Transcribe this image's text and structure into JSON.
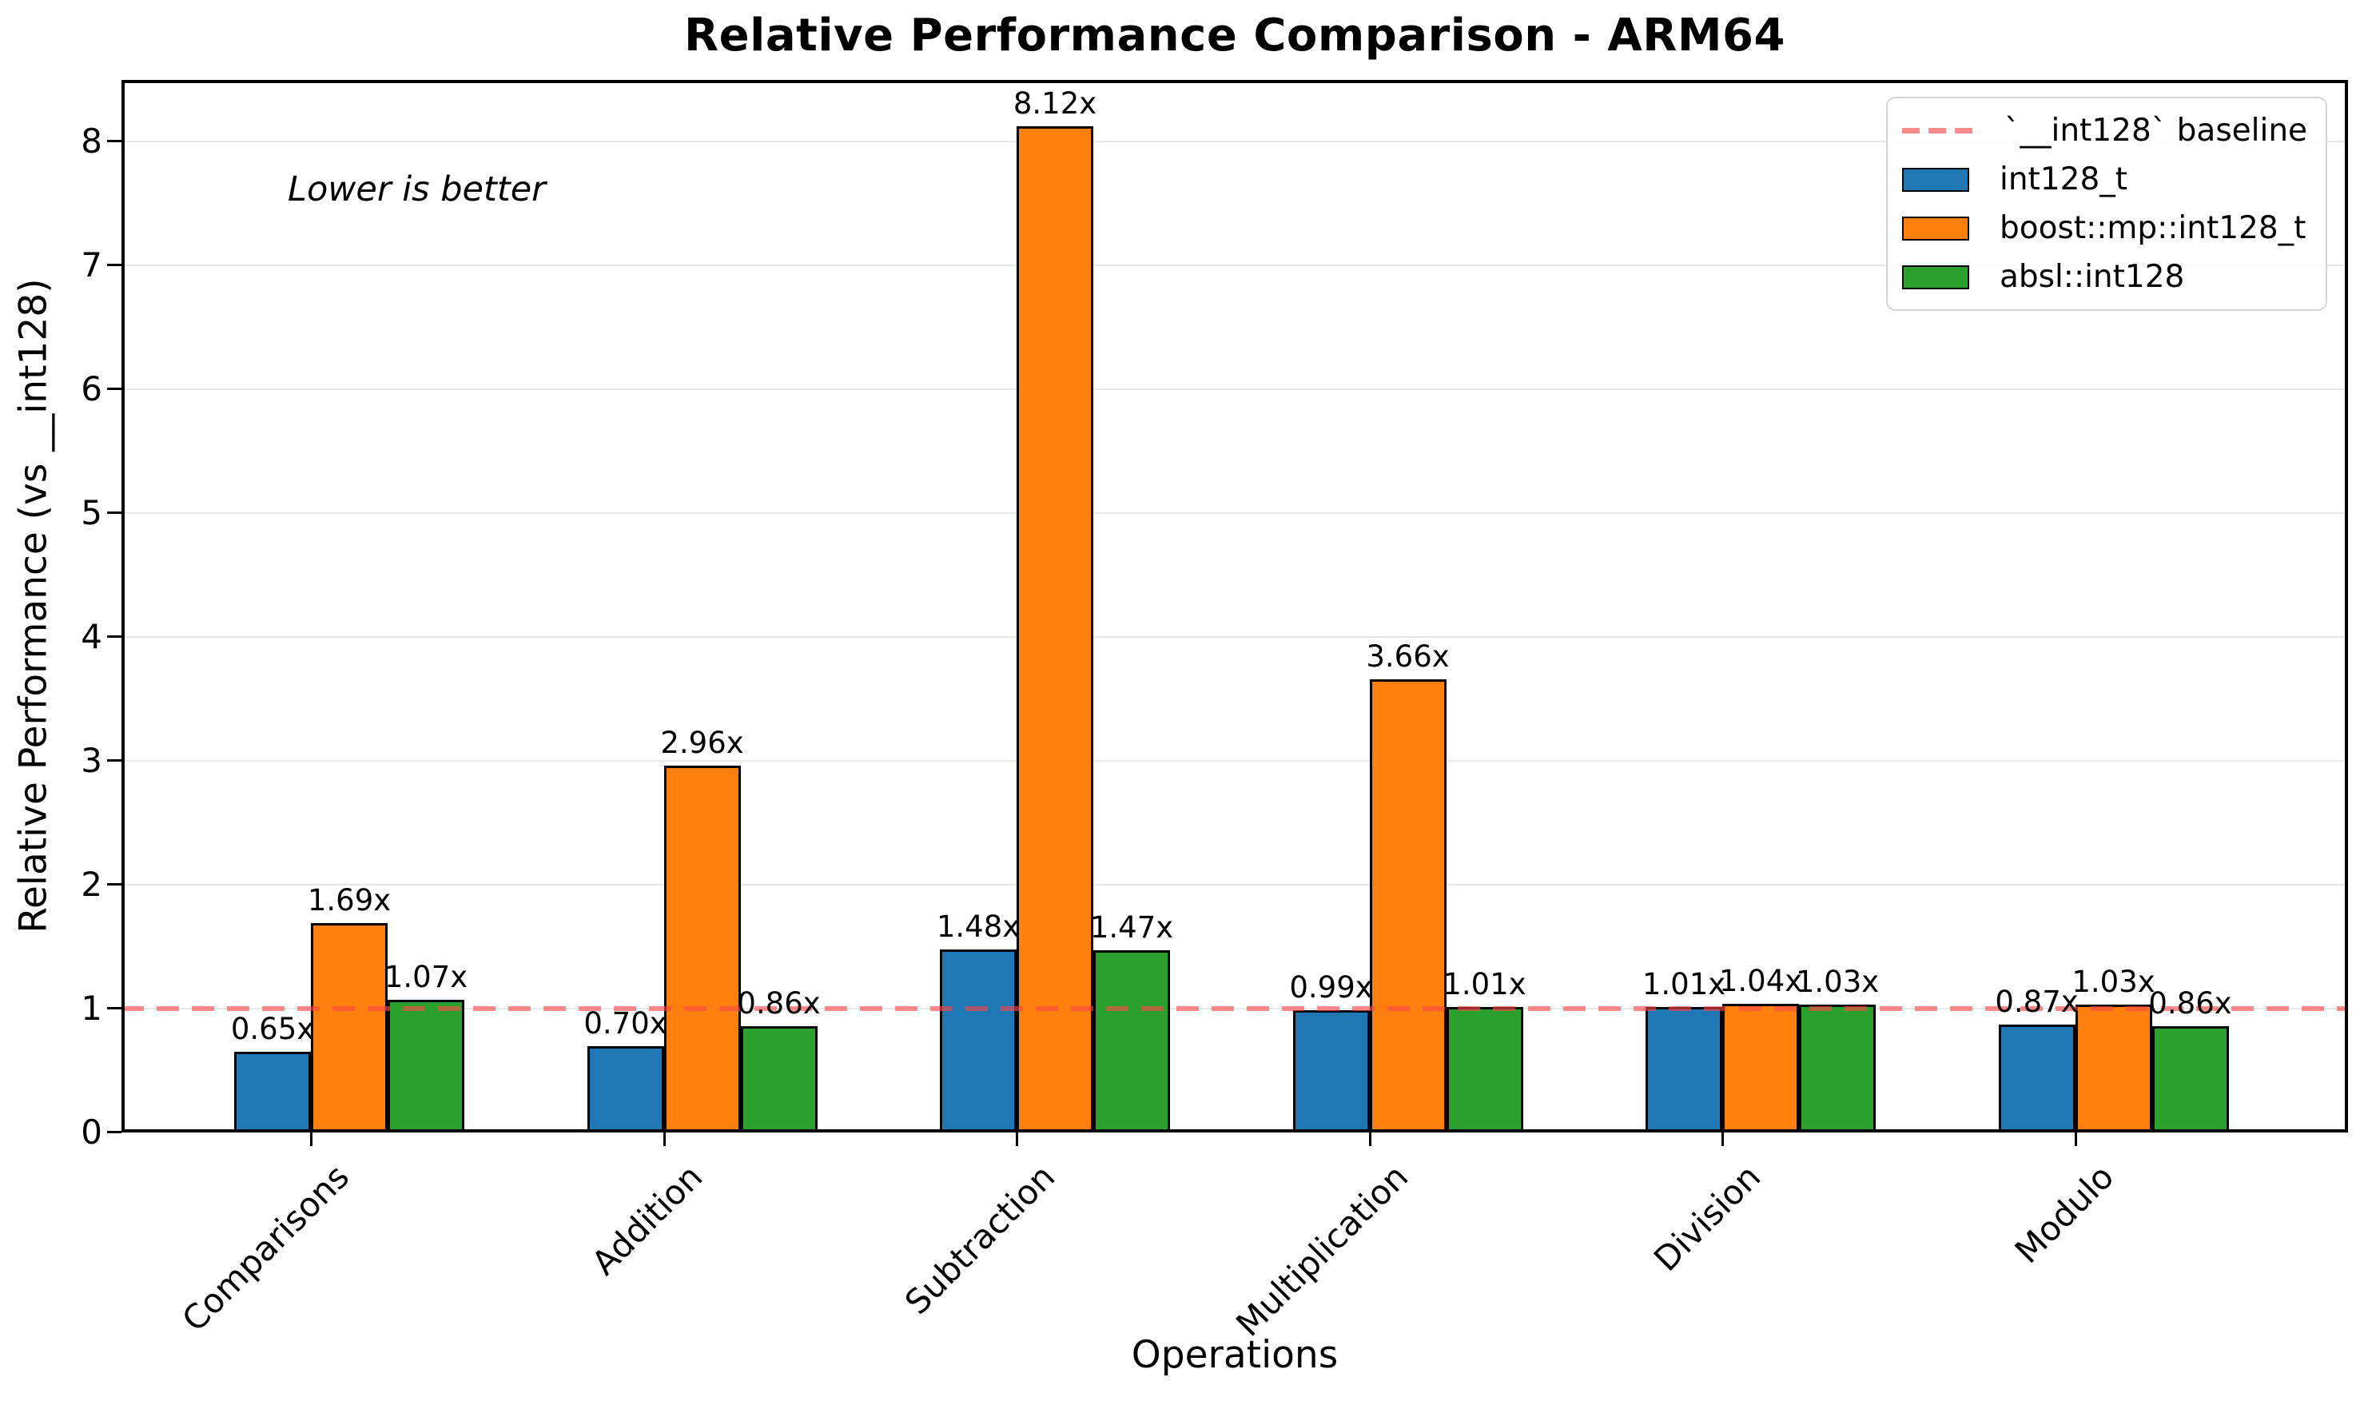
{
  "title": "Relative Performance Comparison - ARM64",
  "annotation": "Lower is better",
  "colors": {
    "blue": "#1f77b4",
    "orange": "#ff7f0e",
    "green": "#2ca02c",
    "baseline": "rgba(255,70,70,0.62)",
    "grid": "#e7e7e7",
    "bar_edge": "#000000"
  },
  "chart_data": {
    "type": "bar",
    "title": "Relative Performance Comparison - ARM64",
    "xlabel": "Operations",
    "ylabel": "Relative Performance (vs __int128)",
    "annotation": "Lower is better",
    "categories": [
      "Comparisons",
      "Addition",
      "Subtraction",
      "Multiplication",
      "Division",
      "Modulo"
    ],
    "series": [
      {
        "name": "int128_t",
        "color": "#1f77b4",
        "values": [
          0.65,
          0.7,
          1.48,
          0.99,
          1.01,
          0.87
        ]
      },
      {
        "name": "boost::mp::int128_t",
        "color": "#ff7f0e",
        "values": [
          1.69,
          2.96,
          8.12,
          3.66,
          1.04,
          1.03
        ]
      },
      {
        "name": "absl::int128",
        "color": "#2ca02c",
        "values": [
          1.07,
          0.86,
          1.47,
          1.01,
          1.03,
          0.86
        ]
      }
    ],
    "value_label_suffix": "x",
    "baseline": {
      "value": 1,
      "label": "`__int128` baseline",
      "style": "dashed"
    },
    "ylim": [
      0,
      8.5
    ],
    "yticks": [
      0,
      1,
      2,
      3,
      4,
      5,
      6,
      7,
      8
    ],
    "grid": true,
    "legend_position": "upper right"
  },
  "legend": {
    "items": [
      {
        "type": "line",
        "color": "rgba(255,70,70,0.62)",
        "label": "`__int128` baseline"
      },
      {
        "type": "swatch",
        "color": "#1f77b4",
        "label": "int128_t"
      },
      {
        "type": "swatch",
        "color": "#ff7f0e",
        "label": "boost::mp::int128_t"
      },
      {
        "type": "swatch",
        "color": "#2ca02c",
        "label": "absl::int128"
      }
    ]
  }
}
